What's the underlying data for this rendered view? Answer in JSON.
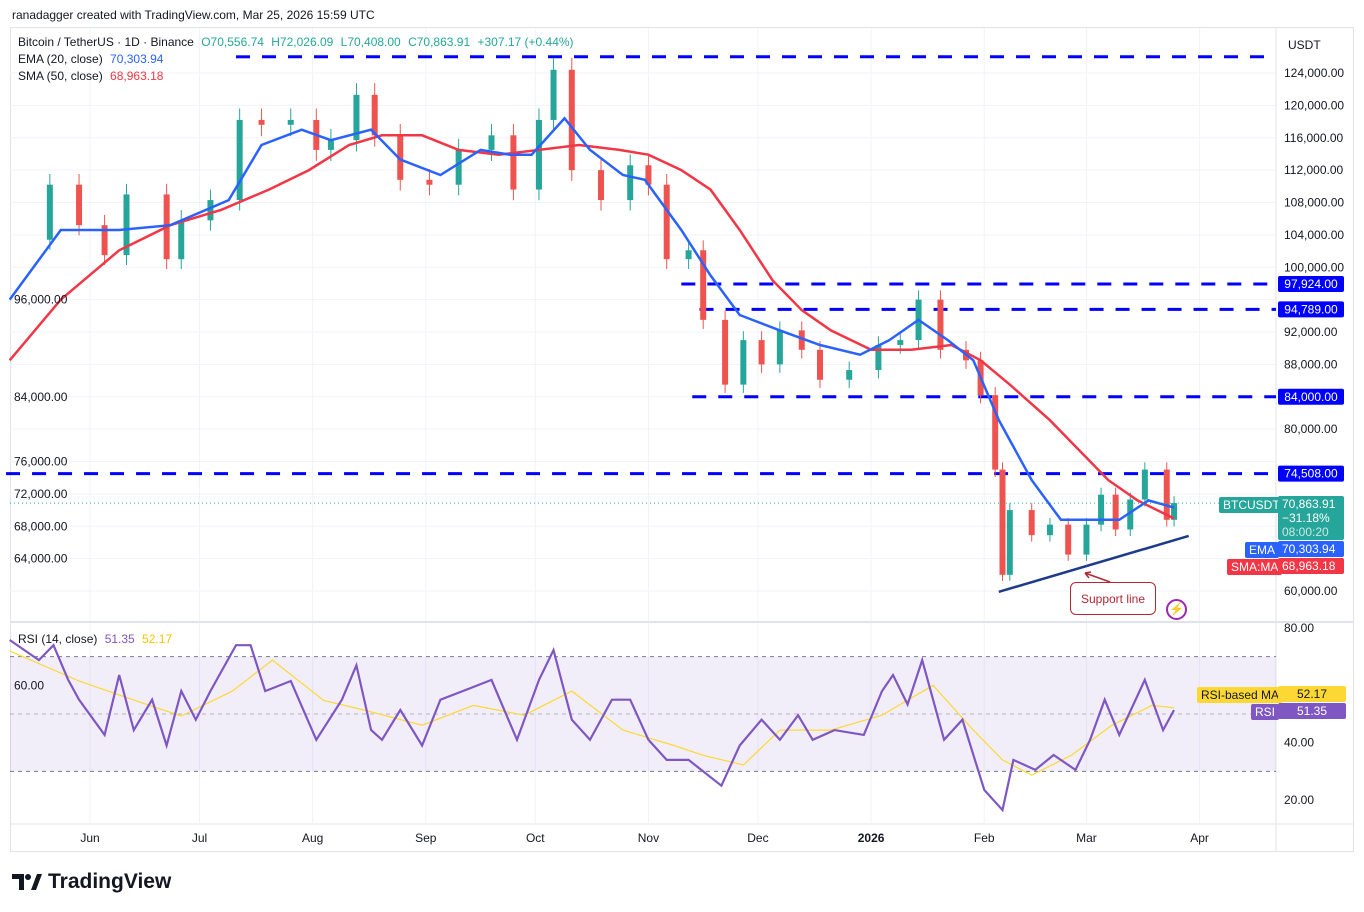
{
  "credit": "ranadagger created with TradingView.com, Mar 25, 2026 15:59 UTC",
  "legend": {
    "symbol": "Bitcoin / TetherUS · 1D · Binance",
    "open": "O70,556.74",
    "high": "H72,026.09",
    "low": "L70,408.00",
    "close": "C70,863.91",
    "change": "+307.17 (+0.44%)",
    "ema_label": "EMA (20, close)",
    "ema_value": "70,303.94",
    "sma_label": "SMA (50, close)",
    "sma_value": "68,963.18",
    "rsi_label": "RSI (14, close)",
    "rsi_value": "51.35",
    "rsi_ma_value": "52.17"
  },
  "currency": "USDT",
  "tags": {
    "btc_name": "BTCUSDT",
    "btc_price": "70,863.91",
    "btc_change": "−31.18%",
    "btc_timer": "08:00:20",
    "ema_name": "EMA",
    "ema_value": "70,303.94",
    "sma_name": "SMA:MA",
    "sma_value": "68,963.18",
    "rsi_ma_name": "RSI-based MA",
    "rsi_ma_value": "52.17",
    "rsi_name": "RSI",
    "rsi_value": "51.35"
  },
  "annotation": "Support line",
  "logo": "TradingView",
  "colors": {
    "up": "#26a69a",
    "down": "#ef5350",
    "ema": "#2962ff",
    "sma": "#f23645",
    "rsi": "#7e57c2",
    "rsi_ma": "#fdd835",
    "level": "#0000ff",
    "support": "#1e3a8a"
  },
  "chart_data": [
    {
      "type": "candlestick",
      "title": "Bitcoin / TetherUS · 1D · Binance",
      "ylim": [
        58000,
        127000
      ],
      "yticks": [
        60000,
        64000,
        68000,
        72000,
        76000,
        80000,
        84000,
        88000,
        92000,
        96000,
        100000,
        104000,
        108000,
        112000,
        116000,
        120000,
        124000
      ],
      "ytick_labels": [
        "60,000.00",
        "64,000.00",
        "68,000.00",
        "72,000.00",
        "76,000.00",
        "80,000.00",
        "84,000.00",
        "88,000.00",
        "92,000.00",
        "96,000.00",
        "100,000.00",
        "104,000.00",
        "108,000.00",
        "112,000.00",
        "116,000.00",
        "120,000.00",
        "124,000.00"
      ],
      "xticks": [
        {
          "date": "2025-06-01",
          "label": "Jun"
        },
        {
          "date": "2025-07-01",
          "label": "Jul"
        },
        {
          "date": "2025-08-01",
          "label": "Aug"
        },
        {
          "date": "2025-09-01",
          "label": "Sep"
        },
        {
          "date": "2025-10-01",
          "label": "Oct"
        },
        {
          "date": "2025-11-01",
          "label": "Nov"
        },
        {
          "date": "2025-12-01",
          "label": "Dec"
        },
        {
          "date": "2026-01-01",
          "label": "2026"
        },
        {
          "date": "2026-02-01",
          "label": "Feb"
        },
        {
          "date": "2026-03-01",
          "label": "Mar"
        },
        {
          "date": "2026-04-01",
          "label": "Apr"
        }
      ],
      "close_series": [
        [
          "2025-05-10",
          103400
        ],
        [
          "2025-05-21",
          110200
        ],
        [
          "2025-05-29",
          105200
        ],
        [
          "2025-06-05",
          101500
        ],
        [
          "2025-06-11",
          109000
        ],
        [
          "2025-06-22",
          101000
        ],
        [
          "2025-06-26",
          105800
        ],
        [
          "2025-07-04",
          108300
        ],
        [
          "2025-07-12",
          118200
        ],
        [
          "2025-07-18",
          117600
        ],
        [
          "2025-07-26",
          118200
        ],
        [
          "2025-08-02",
          114500
        ],
        [
          "2025-08-06",
          115700
        ],
        [
          "2025-08-13",
          121300
        ],
        [
          "2025-08-18",
          116300
        ],
        [
          "2025-08-25",
          110800
        ],
        [
          "2025-09-02",
          110200
        ],
        [
          "2025-09-10",
          114500
        ],
        [
          "2025-09-19",
          116300
        ],
        [
          "2025-09-25",
          109600
        ],
        [
          "2025-10-02",
          118200
        ],
        [
          "2025-10-06",
          124400
        ],
        [
          "2025-10-11",
          112000
        ],
        [
          "2025-10-19",
          108300
        ],
        [
          "2025-10-27",
          112600
        ],
        [
          "2025-11-01",
          110200
        ],
        [
          "2025-11-06",
          101000
        ],
        [
          "2025-11-12",
          102100
        ],
        [
          "2025-11-16",
          93500
        ],
        [
          "2025-11-22",
          85500
        ],
        [
          "2025-11-27",
          91000
        ],
        [
          "2025-12-02",
          88000
        ],
        [
          "2025-12-07",
          92200
        ],
        [
          "2025-12-13",
          89800
        ],
        [
          "2025-12-18",
          86100
        ],
        [
          "2025-12-26",
          87300
        ],
        [
          "2026-01-03",
          90400
        ],
        [
          "2026-01-09",
          91000
        ],
        [
          "2026-01-14",
          96000
        ],
        [
          "2026-01-20",
          89800
        ],
        [
          "2026-01-27",
          88500
        ],
        [
          "2026-01-31",
          84200
        ],
        [
          "2026-02-04",
          75000
        ],
        [
          "2026-02-06",
          62000
        ],
        [
          "2026-02-08",
          70000
        ],
        [
          "2026-02-14",
          66900
        ],
        [
          "2026-02-19",
          68200
        ],
        [
          "2026-02-24",
          64500
        ],
        [
          "2026-03-01",
          68200
        ],
        [
          "2026-03-05",
          71900
        ],
        [
          "2026-03-09",
          67600
        ],
        [
          "2026-03-13",
          71300
        ],
        [
          "2026-03-17",
          75000
        ],
        [
          "2026-03-23",
          68800
        ],
        [
          "2026-03-25",
          70863.91
        ]
      ],
      "ema20": [
        [
          "2025-05-10",
          96000
        ],
        [
          "2025-05-24",
          104600
        ],
        [
          "2025-06-09",
          104600
        ],
        [
          "2025-06-23",
          105200
        ],
        [
          "2025-07-09",
          108300
        ],
        [
          "2025-07-18",
          115100
        ],
        [
          "2025-07-29",
          117000
        ],
        [
          "2025-08-06",
          115700
        ],
        [
          "2025-08-17",
          117000
        ],
        [
          "2025-08-25",
          113300
        ],
        [
          "2025-09-05",
          111400
        ],
        [
          "2025-09-16",
          114500
        ],
        [
          "2025-09-24",
          113900
        ],
        [
          "2025-09-30",
          113900
        ],
        [
          "2025-10-09",
          118400
        ],
        [
          "2025-10-16",
          114500
        ],
        [
          "2025-10-25",
          111400
        ],
        [
          "2025-10-31",
          110800
        ],
        [
          "2025-11-10",
          104600
        ],
        [
          "2025-11-18",
          99000
        ],
        [
          "2025-11-26",
          94100
        ],
        [
          "2025-12-07",
          92200
        ],
        [
          "2025-12-18",
          90400
        ],
        [
          "2025-12-29",
          89200
        ],
        [
          "2026-01-06",
          91000
        ],
        [
          "2026-01-14",
          93500
        ],
        [
          "2026-01-22",
          91000
        ],
        [
          "2026-01-29",
          88500
        ],
        [
          "2026-02-05",
          81100
        ],
        [
          "2026-02-14",
          73700
        ],
        [
          "2026-02-22",
          68800
        ],
        [
          "2026-03-02",
          68800
        ],
        [
          "2026-03-10",
          68800
        ],
        [
          "2026-03-18",
          71200
        ],
        [
          "2026-03-25",
          70303.94
        ]
      ],
      "sma50": [
        [
          "2025-05-10",
          88500
        ],
        [
          "2025-05-24",
          96000
        ],
        [
          "2025-06-09",
          102100
        ],
        [
          "2025-06-23",
          105200
        ],
        [
          "2025-07-07",
          107100
        ],
        [
          "2025-07-20",
          109600
        ],
        [
          "2025-07-31",
          112000
        ],
        [
          "2025-08-11",
          115100
        ],
        [
          "2025-08-20",
          116300
        ],
        [
          "2025-08-31",
          116300
        ],
        [
          "2025-09-10",
          114500
        ],
        [
          "2025-09-21",
          113900
        ],
        [
          "2025-10-02",
          114500
        ],
        [
          "2025-10-13",
          115100
        ],
        [
          "2025-10-24",
          114500
        ],
        [
          "2025-11-01",
          113900
        ],
        [
          "2025-11-10",
          112000
        ],
        [
          "2025-11-18",
          109600
        ],
        [
          "2025-11-26",
          104600
        ],
        [
          "2025-12-05",
          98400
        ],
        [
          "2025-12-13",
          94700
        ],
        [
          "2025-12-21",
          92200
        ],
        [
          "2026-01-01",
          89800
        ],
        [
          "2026-01-12",
          89800
        ],
        [
          "2026-01-23",
          90400
        ],
        [
          "2026-01-31",
          88500
        ],
        [
          "2026-02-08",
          85500
        ],
        [
          "2026-02-19",
          81100
        ],
        [
          "2026-02-27",
          77400
        ],
        [
          "2026-03-07",
          73700
        ],
        [
          "2026-03-15",
          71200
        ],
        [
          "2026-03-25",
          68963.18
        ]
      ],
      "levels": [
        {
          "price": 126000,
          "from": "2025-07-11"
        },
        {
          "price": 97924,
          "label": "97,924.00",
          "from": "2025-11-10"
        },
        {
          "price": 94789,
          "label": "94,789.00",
          "from": "2025-11-15"
        },
        {
          "price": 84000,
          "label": "84,000.00",
          "from": "2025-11-13"
        },
        {
          "price": 74508,
          "label": "74,508.00",
          "from": "2025-05-09"
        }
      ],
      "support_line": [
        [
          "2026-02-05",
          59900
        ],
        [
          "2026-03-29",
          66800
        ]
      ]
    },
    {
      "type": "line",
      "title": "RSI (14, close)",
      "ylim": [
        14,
        84
      ],
      "yticks": [
        20,
        40,
        60,
        80
      ],
      "ytick_labels": [
        "20.00",
        "40.00",
        "60.00",
        "80.00"
      ],
      "bands": [
        30,
        50,
        70
      ],
      "rsi": [
        [
          "2025-05-10",
          75.8
        ],
        [
          "2025-05-18",
          68.8
        ],
        [
          "2025-05-22",
          74
        ],
        [
          "2025-05-26",
          62
        ],
        [
          "2025-05-29",
          55
        ],
        [
          "2025-06-05",
          42.7
        ],
        [
          "2025-06-09",
          63.6
        ],
        [
          "2025-06-13",
          44.4
        ],
        [
          "2025-06-18",
          55
        ],
        [
          "2025-06-22",
          39
        ],
        [
          "2025-06-26",
          58
        ],
        [
          "2025-06-30",
          48
        ],
        [
          "2025-07-04",
          58
        ],
        [
          "2025-07-11",
          74
        ],
        [
          "2025-07-15",
          74
        ],
        [
          "2025-07-19",
          58
        ],
        [
          "2025-07-26",
          61.5
        ],
        [
          "2025-08-02",
          41
        ],
        [
          "2025-08-09",
          55
        ],
        [
          "2025-08-13",
          67
        ],
        [
          "2025-08-17",
          44.4
        ],
        [
          "2025-08-20",
          41
        ],
        [
          "2025-08-25",
          51.4
        ],
        [
          "2025-08-31",
          39
        ],
        [
          "2025-09-05",
          55
        ],
        [
          "2025-09-12",
          58.4
        ],
        [
          "2025-09-19",
          61.9
        ],
        [
          "2025-09-26",
          41
        ],
        [
          "2025-10-02",
          61.9
        ],
        [
          "2025-10-06",
          72.3
        ],
        [
          "2025-10-11",
          48
        ],
        [
          "2025-10-16",
          41
        ],
        [
          "2025-10-22",
          55
        ],
        [
          "2025-10-27",
          55
        ],
        [
          "2025-11-01",
          41
        ],
        [
          "2025-11-06",
          34
        ],
        [
          "2025-11-12",
          34
        ],
        [
          "2025-11-21",
          25
        ],
        [
          "2025-11-26",
          39
        ],
        [
          "2025-12-02",
          48
        ],
        [
          "2025-12-07",
          41
        ],
        [
          "2025-12-12",
          49.6
        ],
        [
          "2025-12-16",
          41
        ],
        [
          "2025-12-22",
          44.4
        ],
        [
          "2025-12-30",
          42.7
        ],
        [
          "2026-01-04",
          58
        ],
        [
          "2026-01-07",
          63.6
        ],
        [
          "2026-01-11",
          53.3
        ],
        [
          "2026-01-15",
          68.8
        ],
        [
          "2026-01-21",
          41
        ],
        [
          "2026-01-26",
          48
        ],
        [
          "2026-02-01",
          23.5
        ],
        [
          "2026-02-06",
          16.5
        ],
        [
          "2026-02-09",
          34
        ],
        [
          "2026-02-15",
          30.5
        ],
        [
          "2026-02-20",
          35.7
        ],
        [
          "2026-02-26",
          30.5
        ],
        [
          "2026-03-02",
          41
        ],
        [
          "2026-03-06",
          55
        ],
        [
          "2026-03-10",
          42.7
        ],
        [
          "2026-03-17",
          61.9
        ],
        [
          "2026-03-22",
          44.4
        ],
        [
          "2026-03-25",
          51.35
        ]
      ],
      "rsi_ma": [
        [
          "2025-05-10",
          72
        ],
        [
          "2025-05-29",
          61.5
        ],
        [
          "2025-06-18",
          52.7
        ],
        [
          "2025-06-26",
          49.3
        ],
        [
          "2025-07-10",
          58
        ],
        [
          "2025-07-21",
          68.8
        ],
        [
          "2025-08-04",
          54.7
        ],
        [
          "2025-08-15",
          51.4
        ],
        [
          "2025-08-31",
          46.1
        ],
        [
          "2025-09-14",
          53
        ],
        [
          "2025-09-28",
          49.6
        ],
        [
          "2025-10-11",
          58
        ],
        [
          "2025-10-25",
          44.4
        ],
        [
          "2025-11-08",
          39
        ],
        [
          "2025-11-16",
          35.6
        ],
        [
          "2025-11-27",
          32.2
        ],
        [
          "2025-12-07",
          44.4
        ],
        [
          "2025-12-21",
          44.4
        ],
        [
          "2026-01-04",
          49.6
        ],
        [
          "2026-01-18",
          60
        ],
        [
          "2026-01-29",
          44.4
        ],
        [
          "2026-02-06",
          34
        ],
        [
          "2026-02-14",
          28.7
        ],
        [
          "2026-02-25",
          35.7
        ],
        [
          "2026-03-08",
          46.1
        ],
        [
          "2026-03-19",
          53
        ],
        [
          "2026-03-25",
          52.17
        ]
      ]
    }
  ]
}
